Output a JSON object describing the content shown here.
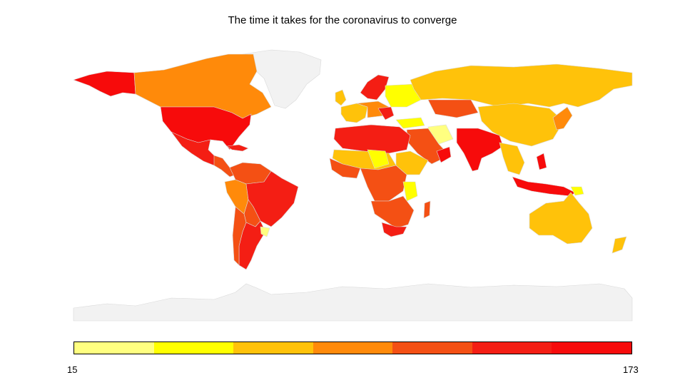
{
  "title": "The time it takes for the coronavirus to converge",
  "legend": {
    "min_label": "15",
    "max_label": "173",
    "colors": [
      "#ffff80",
      "#ffff00",
      "#ffc20a",
      "#ff8a0a",
      "#f45014",
      "#f41e14",
      "#f70b0b"
    ]
  },
  "palette": {
    "land_none": "#f2f2f2",
    "outline": "#d9d9d9",
    "c0": "#ffff80",
    "c1": "#ffff00",
    "c2": "#ffc20a",
    "c3": "#ff8a0a",
    "c4": "#f45014",
    "c5": "#f41e14",
    "c6": "#f70b0b"
  }
}
